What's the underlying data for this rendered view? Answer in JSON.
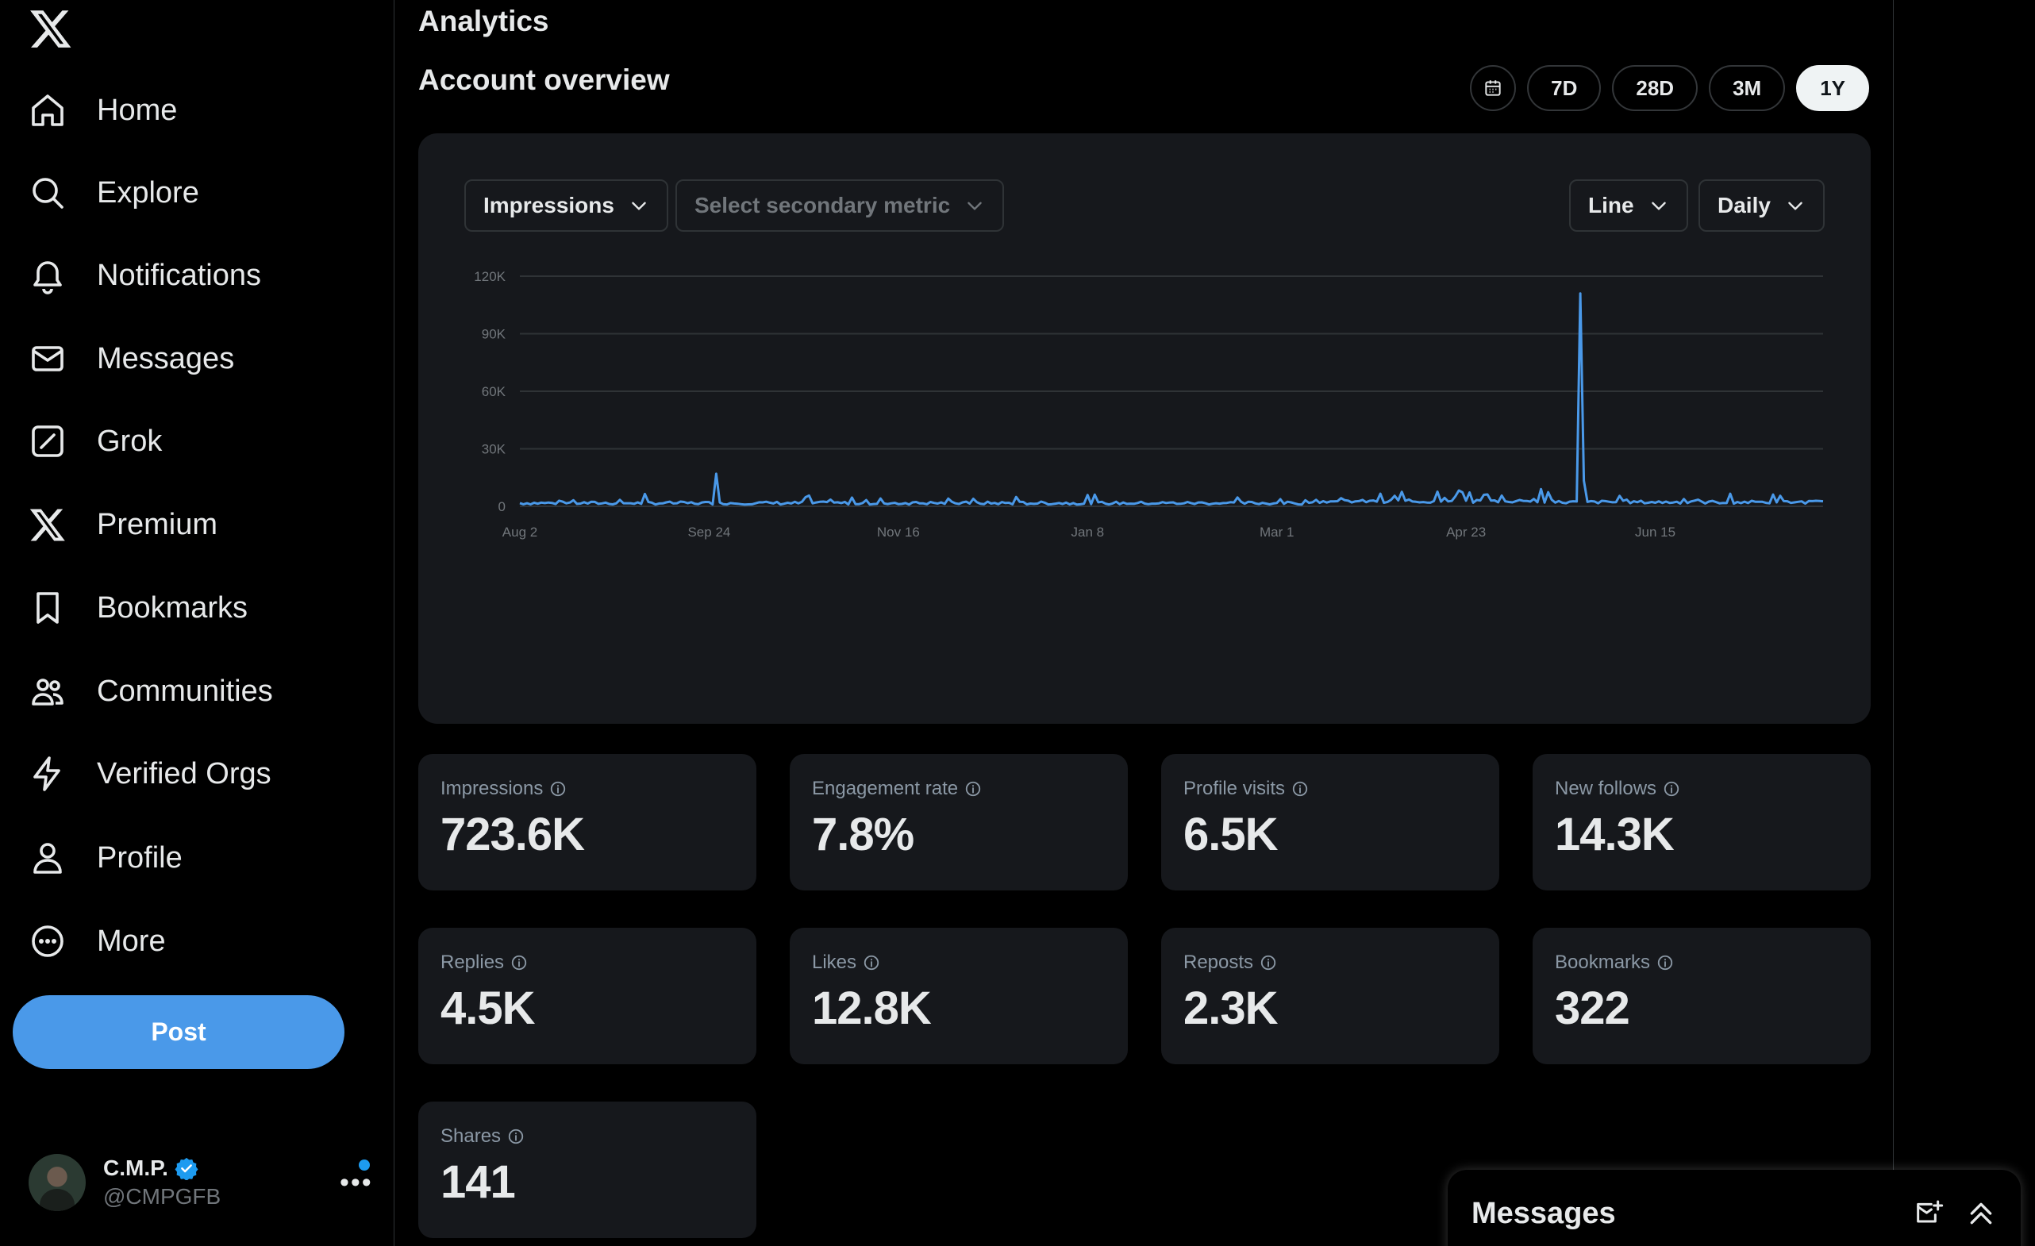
{
  "nav": {
    "items": [
      {
        "label": "Home",
        "icon": "home-icon"
      },
      {
        "label": "Explore",
        "icon": "search-icon"
      },
      {
        "label": "Notifications",
        "icon": "bell-icon"
      },
      {
        "label": "Messages",
        "icon": "mail-icon"
      },
      {
        "label": "Grok",
        "icon": "grok-icon"
      },
      {
        "label": "Premium",
        "icon": "x-logo-icon"
      },
      {
        "label": "Bookmarks",
        "icon": "bookmark-icon"
      },
      {
        "label": "Communities",
        "icon": "people-icon"
      },
      {
        "label": "Verified Orgs",
        "icon": "lightning-icon"
      },
      {
        "label": "Profile",
        "icon": "person-icon"
      },
      {
        "label": "More",
        "icon": "more-circle-icon"
      }
    ],
    "post_label": "Post"
  },
  "account": {
    "name": "C.M.P.",
    "handle": "@CMPGFB"
  },
  "main": {
    "title": "Analytics",
    "section_title": "Account overview",
    "ranges": [
      "7D",
      "28D",
      "3M",
      "1Y"
    ],
    "active_range": "1Y"
  },
  "chart_controls": {
    "primary_metric": "Impressions",
    "secondary_metric_placeholder": "Select secondary metric",
    "chart_type": "Line",
    "granularity": "Daily"
  },
  "chart_data": {
    "type": "line",
    "series": [
      {
        "values": []
      }
    ],
    "x_tick_labels": [
      "Aug 2",
      "Sep 24",
      "Nov 16",
      "Jan 8",
      "Mar 1",
      "Apr 23",
      "Jun 15"
    ],
    "y_tick_labels": [
      "0",
      "30K",
      "60K",
      "90K",
      "120K"
    ],
    "ylim": [
      0,
      120000
    ],
    "grid": true,
    "line_color": "#4a99e9",
    "notable_points": [
      {
        "day": 55,
        "value": 17000
      },
      {
        "day": 297,
        "value": 111000
      }
    ]
  },
  "metrics": [
    {
      "label": "Impressions",
      "value": "723.6K"
    },
    {
      "label": "Engagement rate",
      "value": "7.8%"
    },
    {
      "label": "Profile visits",
      "value": "6.5K"
    },
    {
      "label": "New follows",
      "value": "14.3K"
    },
    {
      "label": "Replies",
      "value": "4.5K"
    },
    {
      "label": "Likes",
      "value": "12.8K"
    },
    {
      "label": "Reposts",
      "value": "2.3K"
    },
    {
      "label": "Bookmarks",
      "value": "322"
    },
    {
      "label": "Shares",
      "value": "141"
    }
  ],
  "messages_drawer": {
    "title": "Messages"
  },
  "colors": {
    "accent": "#4a99e9",
    "card": "#16181c",
    "background": "#000000"
  }
}
